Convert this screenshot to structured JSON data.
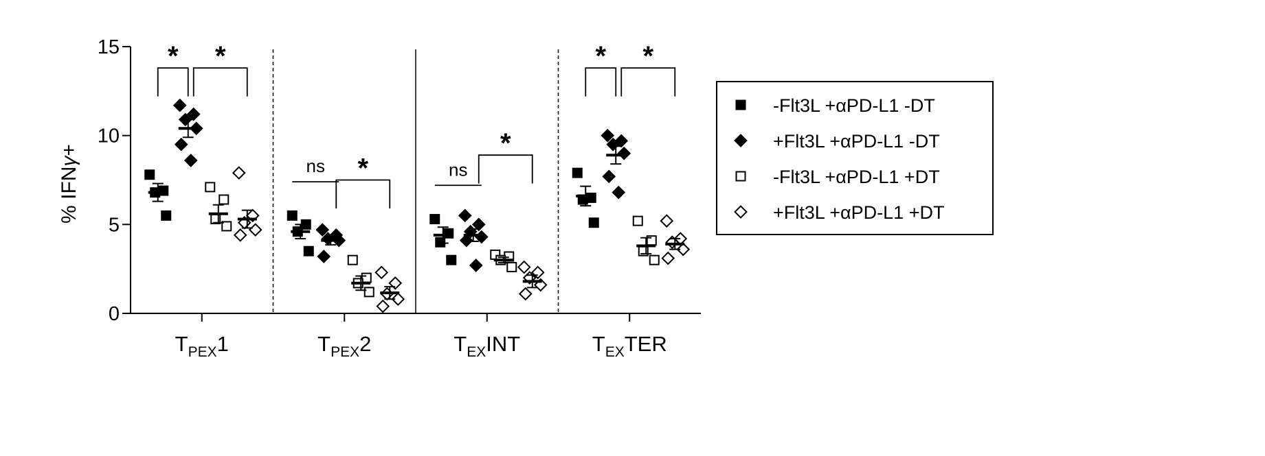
{
  "chart_data": {
    "type": "scatter",
    "ylabel_prefix": "% IFN",
    "ylabel_gamma": "γ",
    "ylabel_suffix": "+",
    "ylim": [
      0,
      15
    ],
    "yticks": [
      0,
      5,
      10,
      15
    ],
    "groups": [
      {
        "id": "tpex1",
        "main": "T",
        "sub": "PEX",
        "post": "1"
      },
      {
        "id": "tpex2",
        "main": "T",
        "sub": "PEX",
        "post": "2"
      },
      {
        "id": "texint",
        "main": "T",
        "sub": "EX",
        "post": "INT"
      },
      {
        "id": "texter",
        "main": "T",
        "sub": "EX",
        "post": "TER"
      }
    ],
    "series": [
      {
        "name": "-Flt3L +αPD-L1 -DT",
        "marker": "square",
        "filled": true,
        "points": [
          [
            7.8,
            6.9,
            6.8,
            5.5
          ],
          [
            5.5,
            5.0,
            4.6,
            3.5
          ],
          [
            5.3,
            4.5,
            4.0,
            3.0
          ],
          [
            7.9,
            6.5,
            6.4,
            5.1
          ]
        ],
        "mean": [
          6.8,
          4.6,
          4.4,
          6.6
        ],
        "sem": [
          0.5,
          0.4,
          0.45,
          0.55
        ]
      },
      {
        "name": "+Flt3L +αPD-L1 -DT",
        "marker": "diamond",
        "filled": true,
        "points": [
          [
            11.7,
            11.2,
            10.9,
            10.4,
            9.5,
            8.6
          ],
          [
            4.7,
            4.4,
            4.2,
            4.1,
            3.2
          ],
          [
            5.5,
            5.0,
            4.6,
            4.3,
            4.1,
            2.7
          ],
          [
            10.0,
            9.7,
            9.5,
            9.0,
            7.7,
            6.8
          ]
        ],
        "mean": [
          10.4,
          4.1,
          4.4,
          8.9
        ],
        "sem": [
          0.5,
          0.25,
          0.35,
          0.5
        ]
      },
      {
        "name": "-Flt3L +αPD-L1 +DT",
        "marker": "square",
        "filled": false,
        "points": [
          [
            7.1,
            6.4,
            5.3,
            4.9
          ],
          [
            3.0,
            2.0,
            1.7,
            1.2
          ],
          [
            3.3,
            3.2,
            3.0,
            2.6
          ],
          [
            5.2,
            4.1,
            3.5,
            3.0
          ]
        ],
        "mean": [
          5.6,
          1.7,
          3.0,
          3.8
        ],
        "sem": [
          0.5,
          0.4,
          0.15,
          0.45
        ]
      },
      {
        "name": "+Flt3L +αPD-L1 +DT",
        "marker": "diamond",
        "filled": false,
        "points": [
          [
            7.9,
            5.5,
            5.1,
            4.7,
            4.4
          ],
          [
            2.3,
            1.7,
            1.1,
            0.8,
            0.4
          ],
          [
            2.6,
            2.3,
            2.0,
            1.6,
            1.1
          ],
          [
            5.2,
            4.2,
            4.0,
            3.6,
            3.1
          ]
        ],
        "mean": [
          5.3,
          1.15,
          1.8,
          3.9
        ],
        "sem": [
          0.5,
          0.35,
          0.35,
          0.3
        ]
      }
    ],
    "annotations": [
      {
        "group": 0,
        "from": 0,
        "to": 1,
        "label": "*",
        "kind": "bracket",
        "y": 13.8
      },
      {
        "group": 0,
        "from": 1,
        "to": 3,
        "label": "*",
        "kind": "bracket",
        "y": 13.8
      },
      {
        "group": 1,
        "from": 0,
        "to": 1,
        "label": "ns",
        "kind": "line",
        "y": 7.4
      },
      {
        "group": 1,
        "from": 1,
        "to": 3,
        "label": "*",
        "kind": "bracket",
        "y": 7.5
      },
      {
        "group": 2,
        "from": 0,
        "to": 1,
        "label": "ns",
        "kind": "line",
        "y": 7.2
      },
      {
        "group": 2,
        "from": 1,
        "to": 3,
        "label": "*",
        "kind": "bracket",
        "y": 8.9
      },
      {
        "group": 3,
        "from": 0,
        "to": 1,
        "label": "*",
        "kind": "bracket",
        "y": 13.8
      },
      {
        "group": 3,
        "from": 1,
        "to": 3,
        "label": "*",
        "kind": "bracket",
        "y": 13.8
      }
    ],
    "separators": [
      "dashed",
      "solid",
      "dashed"
    ],
    "legend_position": "right"
  }
}
